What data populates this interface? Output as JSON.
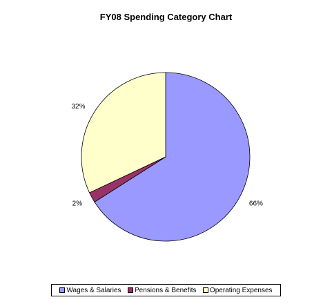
{
  "chart_data": {
    "type": "pie",
    "title": "FY08 Spending Category Chart",
    "categories": [
      "Wages & Salaries",
      "Pensions & Benefits",
      "Operating Expenses"
    ],
    "values": [
      66,
      2,
      32
    ],
    "labels": [
      "66%",
      "2%",
      "32%"
    ],
    "colors": [
      "#9999FF",
      "#993366",
      "#FFFFCC"
    ],
    "start_angle_deg": 0,
    "direction": "clockwise",
    "legend": "bottom"
  }
}
